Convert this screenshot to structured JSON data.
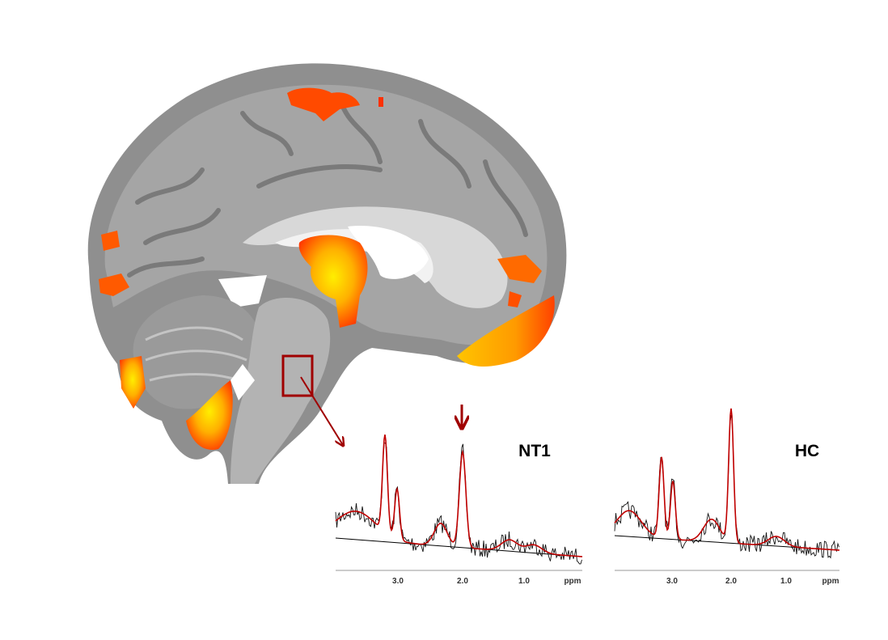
{
  "spectra": [
    {
      "label": "NT1",
      "axis_labels": [
        "3.0",
        "2.0",
        "1.0",
        "ppm"
      ]
    },
    {
      "label": "HC",
      "axis_labels": [
        "3.0",
        "2.0",
        "1.0",
        "ppm"
      ]
    }
  ]
}
